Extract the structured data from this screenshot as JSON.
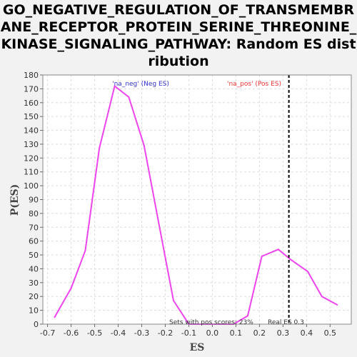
{
  "chart_data": {
    "type": "line",
    "title": "GO_NEGATIVE_REGULATION_OF_TRANSMEMBRANE_RECEPTOR_PROTEIN_SERINE_THREONINE_KINASE_SIGNALING_PATHWAY: Random ES distribution",
    "xlabel": "ES",
    "ylabel": "P(ES)",
    "xlim": [
      -0.72,
      0.59
    ],
    "ylim": [
      0,
      180
    ],
    "xticks": [
      -0.7,
      -0.6,
      -0.5,
      -0.4,
      -0.3,
      -0.2,
      -0.1,
      0.0,
      0.1,
      0.2,
      0.3,
      0.4,
      0.5
    ],
    "yticks": [
      0,
      10,
      20,
      30,
      40,
      50,
      60,
      70,
      80,
      90,
      100,
      110,
      120,
      130,
      140,
      150,
      160,
      170,
      180
    ],
    "grid": true,
    "series": [
      {
        "color": "#ee44ee",
        "x": [
          -0.67,
          -0.6,
          -0.54,
          -0.48,
          -0.415,
          -0.355,
          -0.29,
          -0.23,
          -0.165,
          -0.1,
          0.02,
          0.09,
          0.15,
          0.21,
          0.28,
          0.33,
          0.405,
          0.465,
          0.53
        ],
        "y": [
          5,
          26,
          53,
          127,
          172,
          164,
          129,
          75,
          17,
          0,
          0,
          0,
          6,
          49,
          54,
          47,
          38,
          20,
          14
        ]
      }
    ],
    "real_es": 0.325,
    "annotations": {
      "neg_label": "'na_neg' (Neg ES)",
      "pos_label": "'na_pos' (Pos ES)",
      "sets_label": "Sets with pos scores: 23%",
      "real_es_label": "Real ES 0.3"
    },
    "colors": {
      "neg": "#3333cc",
      "pos": "#ee3333",
      "line": "#ee44ee"
    }
  }
}
